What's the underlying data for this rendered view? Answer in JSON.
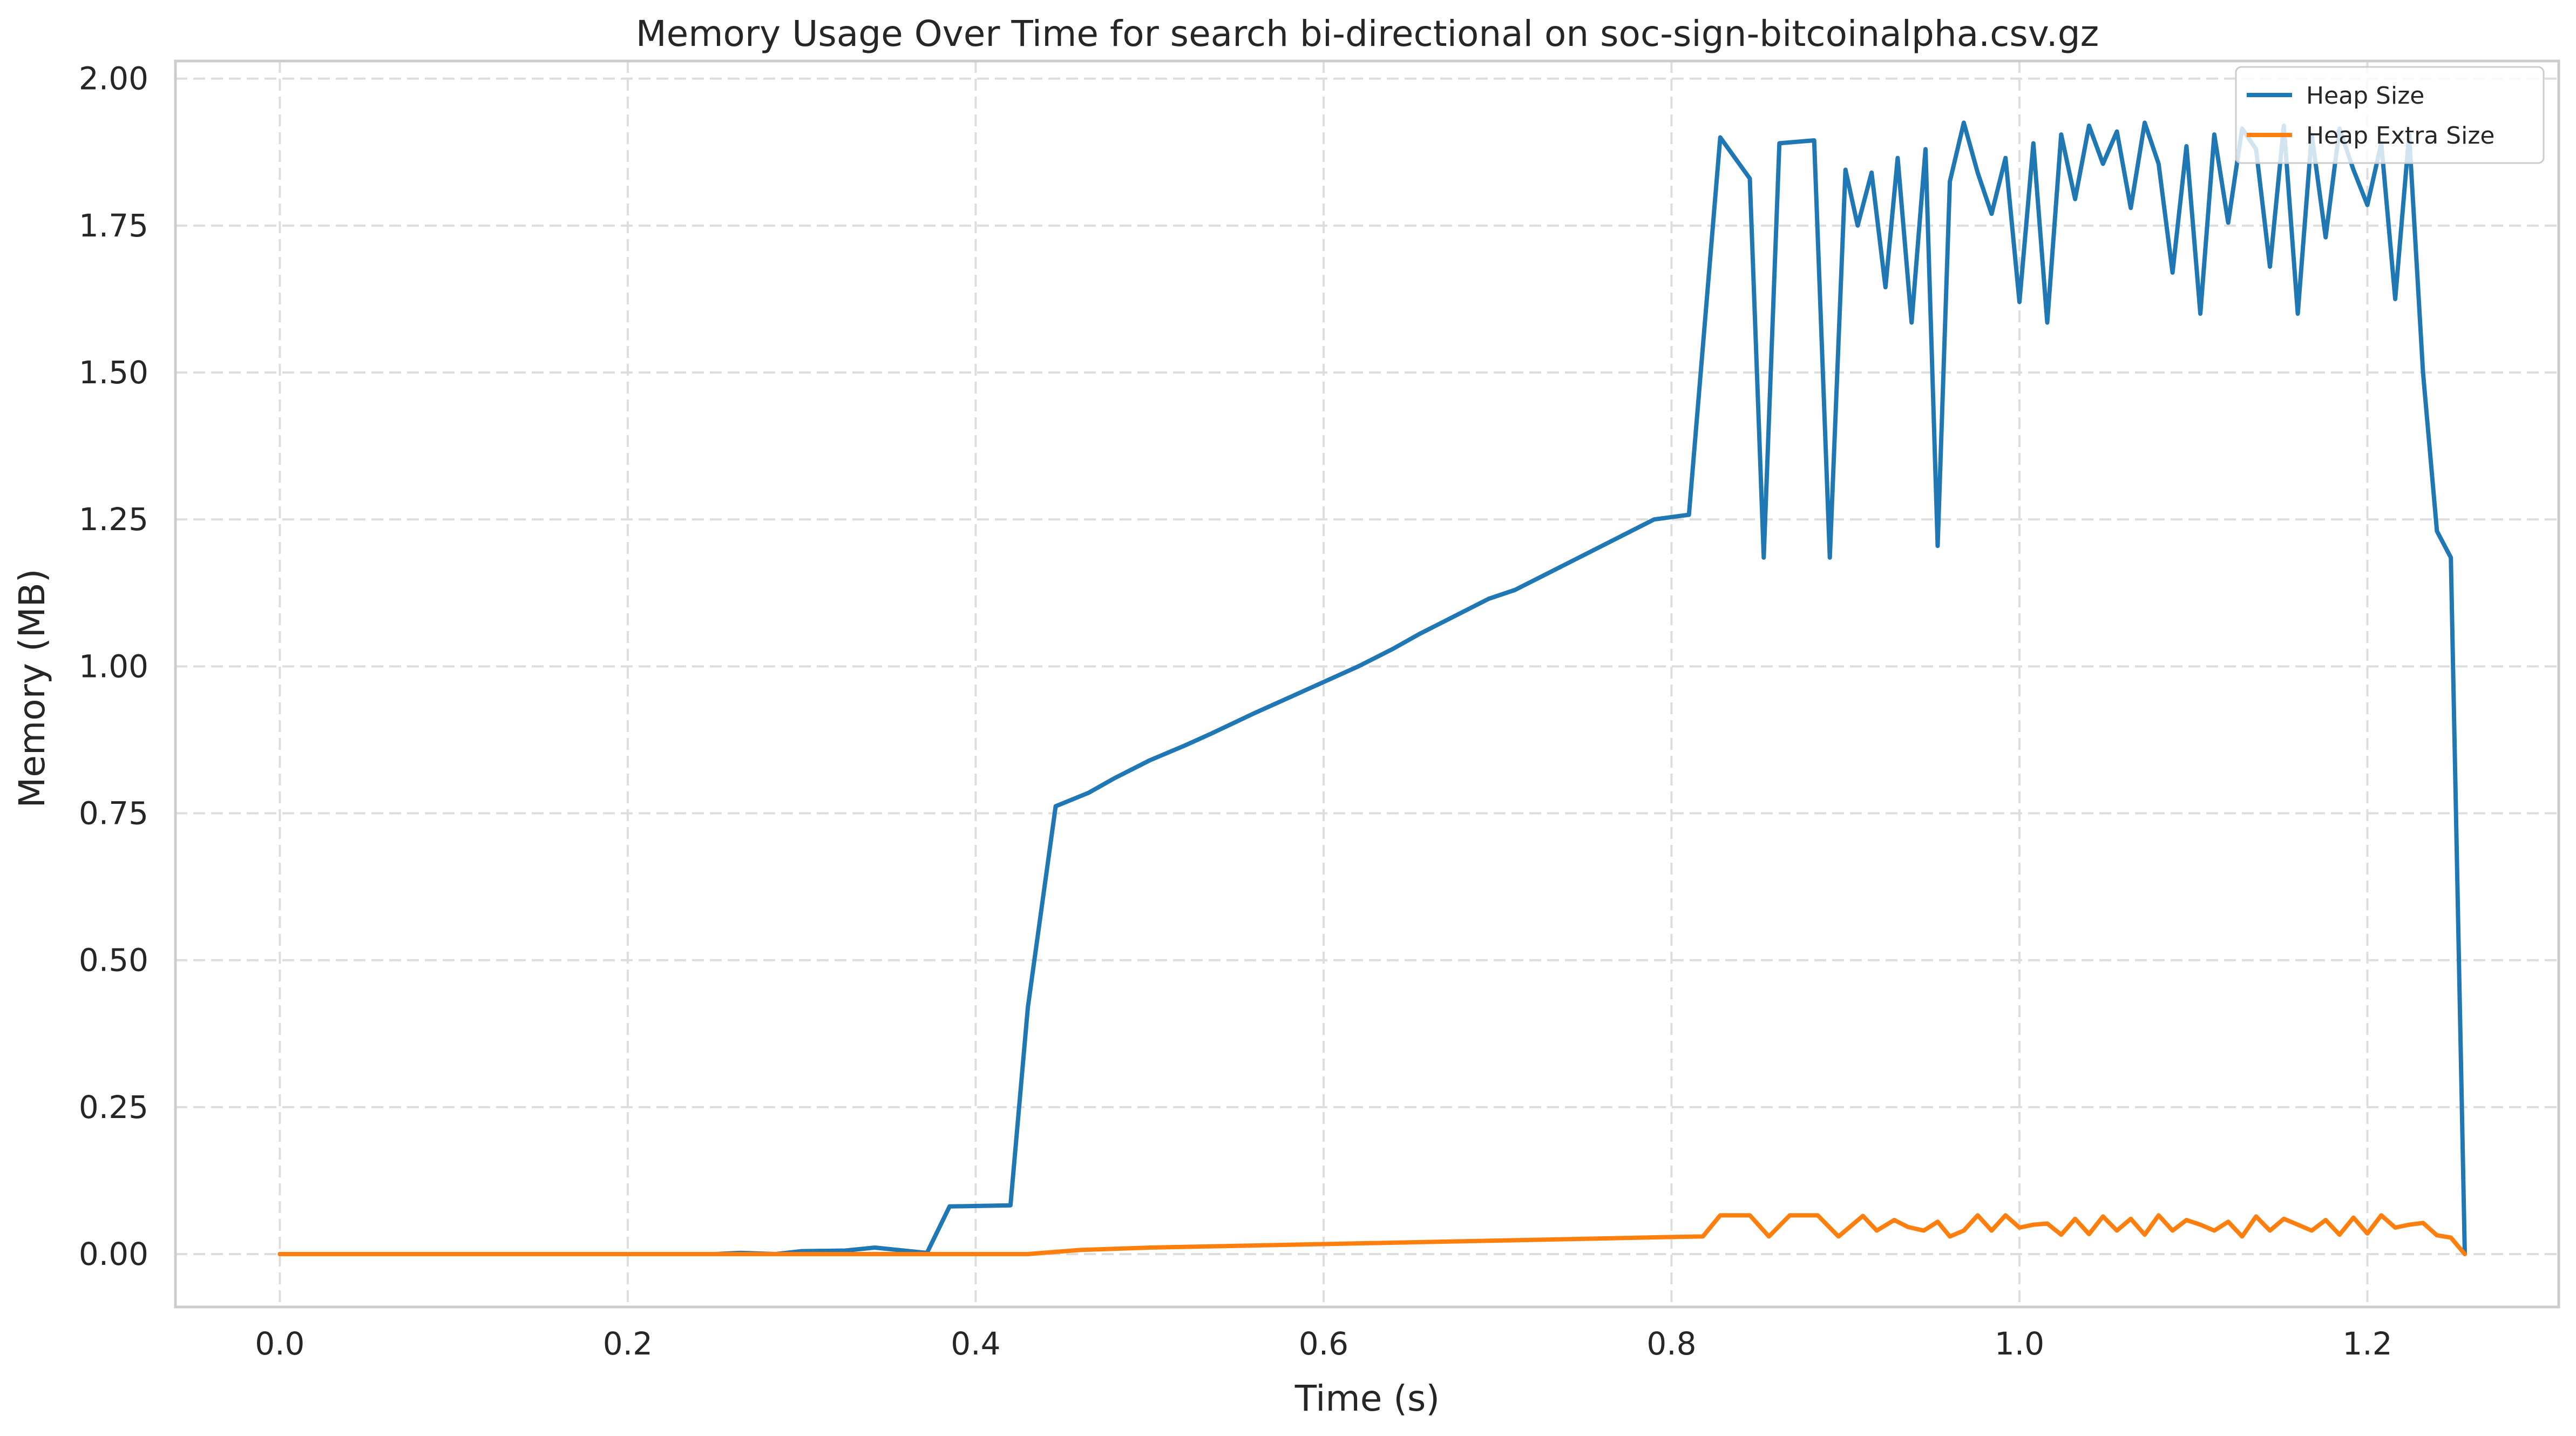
{
  "chart_data": {
    "type": "line",
    "title": "Memory Usage Over Time for search bi-directional on soc-sign-bitcoinalpha.csv.gz",
    "xlabel": "Time (s)",
    "ylabel": "Memory (MB)",
    "xlim": [
      -0.06,
      1.31
    ],
    "ylim": [
      -0.09,
      2.03
    ],
    "xticks": [
      0.0,
      0.2,
      0.4,
      0.6,
      0.8,
      1.0,
      1.2
    ],
    "xtick_labels": [
      "0.0",
      "0.2",
      "0.4",
      "0.6",
      "0.8",
      "1.0",
      "1.2"
    ],
    "yticks": [
      0.0,
      0.25,
      0.5,
      0.75,
      1.0,
      1.25,
      1.5,
      1.75,
      2.0
    ],
    "ytick_labels": [
      "0.00",
      "0.25",
      "0.50",
      "0.75",
      "1.00",
      "1.25",
      "1.50",
      "1.75",
      "2.00"
    ],
    "grid": true,
    "legend_position": "top-right",
    "series": [
      {
        "name": "Heap Size",
        "color": "#1f77b4",
        "points": [
          [
            0.0,
            0.0
          ],
          [
            0.25,
            0.0
          ],
          [
            0.265,
            0.002
          ],
          [
            0.285,
            0.0
          ],
          [
            0.3,
            0.005
          ],
          [
            0.325,
            0.006
          ],
          [
            0.342,
            0.011
          ],
          [
            0.372,
            0.002
          ],
          [
            0.385,
            0.081
          ],
          [
            0.42,
            0.083
          ],
          [
            0.43,
            0.42
          ],
          [
            0.446,
            0.762
          ],
          [
            0.465,
            0.785
          ],
          [
            0.48,
            0.81
          ],
          [
            0.5,
            0.84
          ],
          [
            0.52,
            0.865
          ],
          [
            0.535,
            0.885
          ],
          [
            0.56,
            0.92
          ],
          [
            0.59,
            0.96
          ],
          [
            0.62,
            1.0
          ],
          [
            0.64,
            1.03
          ],
          [
            0.655,
            1.055
          ],
          [
            0.675,
            1.085
          ],
          [
            0.695,
            1.115
          ],
          [
            0.71,
            1.13
          ],
          [
            0.73,
            1.16
          ],
          [
            0.76,
            1.205
          ],
          [
            0.79,
            1.25
          ],
          [
            0.81,
            1.258
          ],
          [
            0.828,
            1.9
          ],
          [
            0.845,
            1.83
          ],
          [
            0.853,
            1.185
          ],
          [
            0.862,
            1.89
          ],
          [
            0.882,
            1.895
          ],
          [
            0.891,
            1.185
          ],
          [
            0.9,
            1.845
          ],
          [
            0.907,
            1.75
          ],
          [
            0.915,
            1.84
          ],
          [
            0.923,
            1.645
          ],
          [
            0.93,
            1.865
          ],
          [
            0.938,
            1.585
          ],
          [
            0.946,
            1.88
          ],
          [
            0.953,
            1.205
          ],
          [
            0.96,
            1.825
          ],
          [
            0.968,
            1.925
          ],
          [
            0.976,
            1.84
          ],
          [
            0.984,
            1.77
          ],
          [
            0.992,
            1.865
          ],
          [
            1.0,
            1.62
          ],
          [
            1.008,
            1.89
          ],
          [
            1.016,
            1.585
          ],
          [
            1.024,
            1.905
          ],
          [
            1.032,
            1.795
          ],
          [
            1.04,
            1.92
          ],
          [
            1.048,
            1.855
          ],
          [
            1.056,
            1.91
          ],
          [
            1.064,
            1.78
          ],
          [
            1.072,
            1.925
          ],
          [
            1.08,
            1.855
          ],
          [
            1.088,
            1.67
          ],
          [
            1.096,
            1.885
          ],
          [
            1.104,
            1.6
          ],
          [
            1.112,
            1.905
          ],
          [
            1.12,
            1.755
          ],
          [
            1.128,
            1.915
          ],
          [
            1.136,
            1.88
          ],
          [
            1.144,
            1.68
          ],
          [
            1.152,
            1.92
          ],
          [
            1.16,
            1.6
          ],
          [
            1.168,
            1.905
          ],
          [
            1.176,
            1.73
          ],
          [
            1.184,
            1.915
          ],
          [
            1.192,
            1.845
          ],
          [
            1.2,
            1.785
          ],
          [
            1.208,
            1.89
          ],
          [
            1.216,
            1.625
          ],
          [
            1.224,
            1.905
          ],
          [
            1.232,
            1.5
          ],
          [
            1.24,
            1.23
          ],
          [
            1.248,
            1.185
          ],
          [
            1.256,
            0.0
          ]
        ]
      },
      {
        "name": "Heap Extra Size",
        "color": "#ff7f0e",
        "points": [
          [
            0.0,
            0.0
          ],
          [
            0.3,
            0.0
          ],
          [
            0.43,
            0.0
          ],
          [
            0.46,
            0.007
          ],
          [
            0.5,
            0.011
          ],
          [
            0.55,
            0.014
          ],
          [
            0.6,
            0.017
          ],
          [
            0.65,
            0.02
          ],
          [
            0.7,
            0.023
          ],
          [
            0.75,
            0.026
          ],
          [
            0.8,
            0.029
          ],
          [
            0.818,
            0.03
          ],
          [
            0.828,
            0.066
          ],
          [
            0.845,
            0.066
          ],
          [
            0.856,
            0.03
          ],
          [
            0.868,
            0.066
          ],
          [
            0.884,
            0.066
          ],
          [
            0.896,
            0.03
          ],
          [
            0.91,
            0.065
          ],
          [
            0.918,
            0.04
          ],
          [
            0.928,
            0.058
          ],
          [
            0.936,
            0.046
          ],
          [
            0.945,
            0.04
          ],
          [
            0.953,
            0.055
          ],
          [
            0.96,
            0.03
          ],
          [
            0.968,
            0.04
          ],
          [
            0.976,
            0.066
          ],
          [
            0.984,
            0.04
          ],
          [
            0.992,
            0.066
          ],
          [
            1.0,
            0.045
          ],
          [
            1.008,
            0.05
          ],
          [
            1.016,
            0.052
          ],
          [
            1.024,
            0.033
          ],
          [
            1.032,
            0.06
          ],
          [
            1.04,
            0.034
          ],
          [
            1.048,
            0.064
          ],
          [
            1.056,
            0.04
          ],
          [
            1.064,
            0.06
          ],
          [
            1.072,
            0.033
          ],
          [
            1.08,
            0.066
          ],
          [
            1.088,
            0.04
          ],
          [
            1.096,
            0.058
          ],
          [
            1.104,
            0.05
          ],
          [
            1.112,
            0.04
          ],
          [
            1.12,
            0.055
          ],
          [
            1.128,
            0.03
          ],
          [
            1.136,
            0.064
          ],
          [
            1.144,
            0.04
          ],
          [
            1.152,
            0.06
          ],
          [
            1.16,
            0.05
          ],
          [
            1.168,
            0.04
          ],
          [
            1.176,
            0.058
          ],
          [
            1.184,
            0.033
          ],
          [
            1.192,
            0.062
          ],
          [
            1.2,
            0.035
          ],
          [
            1.208,
            0.066
          ],
          [
            1.216,
            0.045
          ],
          [
            1.224,
            0.05
          ],
          [
            1.232,
            0.053
          ],
          [
            1.24,
            0.032
          ],
          [
            1.248,
            0.028
          ],
          [
            1.256,
            0.0
          ]
        ]
      }
    ]
  }
}
